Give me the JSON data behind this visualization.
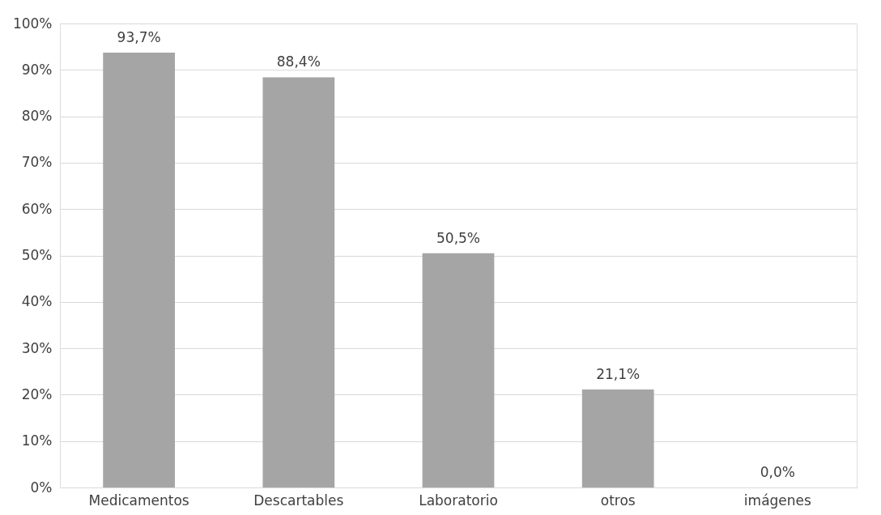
{
  "chart_data": {
    "type": "bar",
    "categories": [
      "Medicamentos",
      "Descartables",
      "Laboratorio",
      "otros",
      "imágenes"
    ],
    "values": [
      93.7,
      88.4,
      50.5,
      21.1,
      0.0
    ],
    "value_labels": [
      "93,7%",
      "88,4%",
      "50,5%",
      "21,1%",
      "0,0%"
    ],
    "color": "#a5a5a5",
    "ylim": [
      0,
      100
    ],
    "yticks": [
      {
        "value": 0,
        "label": "0%"
      },
      {
        "value": 10,
        "label": "10%"
      },
      {
        "value": 20,
        "label": "20%"
      },
      {
        "value": 30,
        "label": "30%"
      },
      {
        "value": 40,
        "label": "40%"
      },
      {
        "value": 50,
        "label": "50%"
      },
      {
        "value": 60,
        "label": "60%"
      },
      {
        "value": 70,
        "label": "70%"
      },
      {
        "value": 80,
        "label": "80%"
      },
      {
        "value": 90,
        "label": "90%"
      },
      {
        "value": 100,
        "label": "100%"
      }
    ],
    "grid": "y"
  }
}
